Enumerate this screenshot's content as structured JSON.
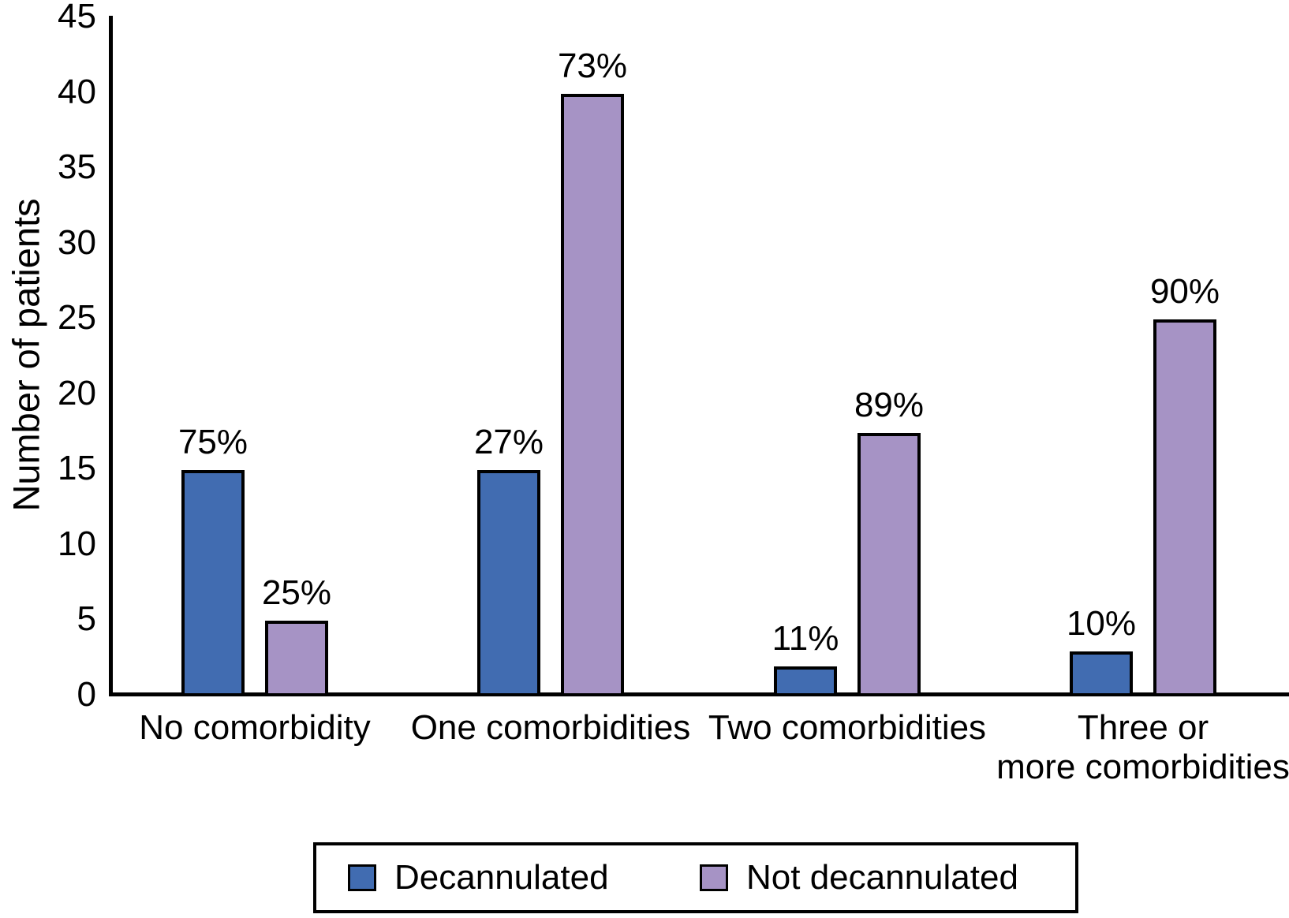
{
  "figure": {
    "background": "#ffffff",
    "bar_outline_color": "#000000",
    "axis_color": "#000000"
  },
  "chart_data": {
    "type": "bar",
    "title": "",
    "xlabel": "",
    "ylabel": "Number of patients",
    "ylim": [
      0,
      45
    ],
    "yticks": [
      0,
      5,
      10,
      15,
      20,
      25,
      30,
      35,
      40,
      45
    ],
    "grid": false,
    "legend_position": "bottom-boxed",
    "categories": [
      [
        "No comorbidity"
      ],
      [
        "One comorbidities"
      ],
      [
        "Two comorbidities"
      ],
      [
        "Three or",
        "more comorbidities"
      ]
    ],
    "series": [
      {
        "name": "Decannulated",
        "color": "#416CB1",
        "values": [
          15,
          15,
          2,
          3
        ],
        "data_labels": [
          "75%",
          "27%",
          "11%",
          "10%"
        ]
      },
      {
        "name": "Not decannulated",
        "color": "#A693C5",
        "values": [
          5,
          40,
          17.5,
          25
        ],
        "data_labels": [
          "25%",
          "73%",
          "89%",
          "90%"
        ]
      }
    ]
  }
}
